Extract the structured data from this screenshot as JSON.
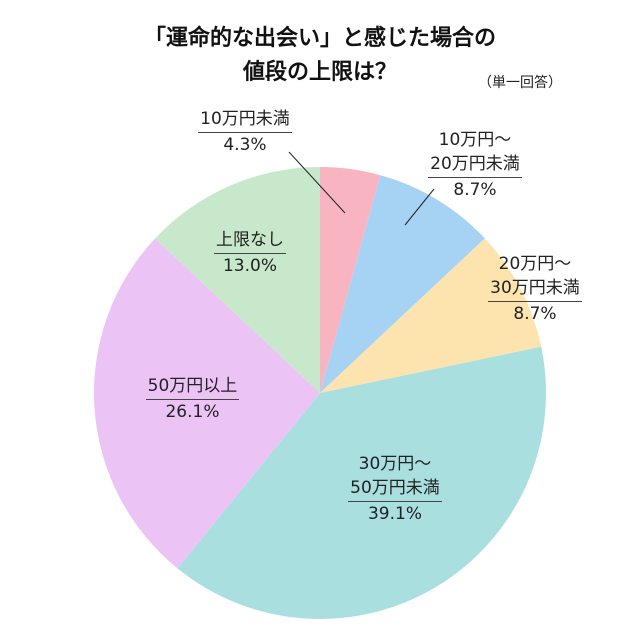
{
  "header": {
    "title_line1": "「運命的な出会い」と感じた場合の",
    "title_line2": "値段の上限は？",
    "note": "（単一回答）"
  },
  "colors": {
    "pink": "#F9B4C1",
    "blue": "#A6D3F4",
    "yellow": "#FDE4AE",
    "teal": "#A9E0DF",
    "purple": "#ECC3F5",
    "green": "#C8E8CC"
  },
  "labels": {
    "s1": {
      "line1": "10万円未満",
      "pct": "4.3%"
    },
    "s2": {
      "line1": "10万円〜",
      "line2": "20万円未満",
      "pct": "8.7%"
    },
    "s3": {
      "line1": "20万円〜",
      "line2": "30万円未満",
      "pct": "8.7%"
    },
    "s4": {
      "line1": "30万円〜",
      "line2": "50万円未満",
      "pct": "39.1%"
    },
    "s5": {
      "line1": "50万円以上",
      "pct": "26.1%"
    },
    "s6": {
      "line1": "上限なし",
      "pct": "13.0%"
    }
  },
  "chart_data": {
    "type": "pie",
    "title": "「運命的な出会い」と感じた場合の値段の上限は？",
    "subtitle": "（単一回答）",
    "categories": [
      "10万円未満",
      "10万円〜20万円未満",
      "20万円〜30万円未満",
      "30万円〜50万円未満",
      "50万円以上",
      "上限なし"
    ],
    "values": [
      4.3,
      8.7,
      8.7,
      39.1,
      26.1,
      13.0
    ],
    "unit": "%",
    "colors": [
      "#F9B4C1",
      "#A6D3F4",
      "#FDE4AE",
      "#A9E0DF",
      "#ECC3F5",
      "#C8E8CC"
    ],
    "start_angle": "12 o'clock",
    "direction": "clockwise",
    "legend": "none (direct labels)"
  }
}
